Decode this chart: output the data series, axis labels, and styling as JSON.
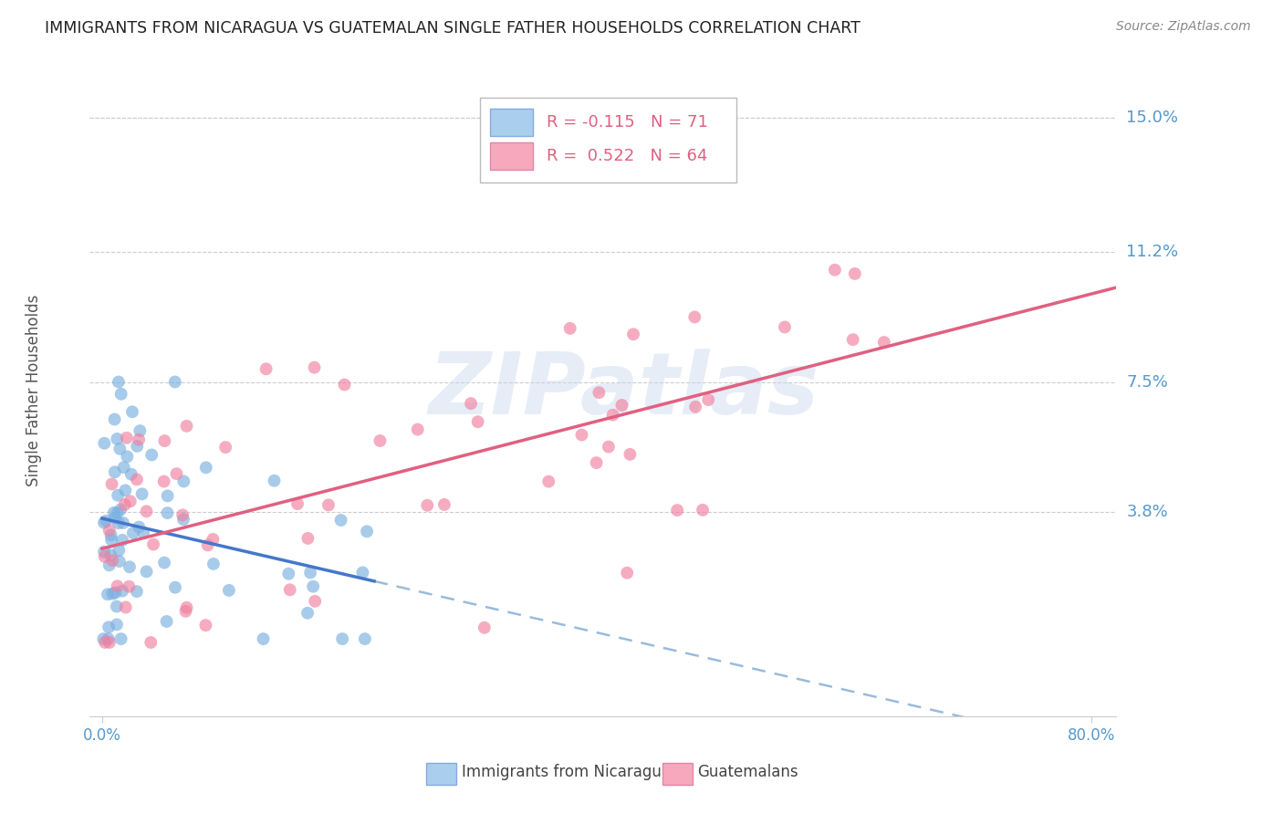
{
  "title": "IMMIGRANTS FROM NICARAGUA VS GUATEMALAN SINGLE FATHER HOUSEHOLDS CORRELATION CHART",
  "source": "Source: ZipAtlas.com",
  "ylabel": "Single Father Households",
  "ytick_vals": [
    0.038,
    0.075,
    0.112,
    0.15
  ],
  "ytick_labels": [
    "3.8%",
    "7.5%",
    "11.2%",
    "15.0%"
  ],
  "xlim": [
    -0.01,
    0.82
  ],
  "ylim": [
    -0.02,
    0.165
  ],
  "xtick_vals": [
    0.0,
    0.8
  ],
  "xtick_labels": [
    "0.0%",
    "80.0%"
  ],
  "legend_row1_text": "R = -0.115   N = 71",
  "legend_row2_text": "R =  0.522   N = 64",
  "legend_nic_color": "#aacfee",
  "legend_guat_color": "#f7a8bc",
  "nicaragua_color": "#7ab0e0",
  "guatemala_color": "#f080a0",
  "nic_line_color": "#4477cc",
  "nic_dash_color": "#99bbdd",
  "guat_line_color": "#e06080",
  "bottom_legend_labels": [
    "Immigrants from Nicaragua",
    "Guatemalans"
  ],
  "watermark": "ZIPatlas",
  "background_color": "#ffffff",
  "grid_color": "#cccccc",
  "axis_label_color": "#5599cc",
  "title_color": "#222222",
  "source_color": "#888888"
}
